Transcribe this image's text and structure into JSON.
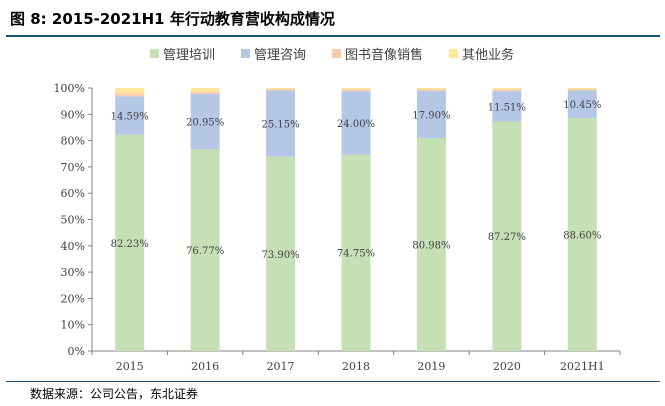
{
  "title": "图 8: 2015-2021H1 年行动教育营收构成情况",
  "source": "数据来源：公司公告，东北证券",
  "chart_data": {
    "type": "bar",
    "stacked": true,
    "categories": [
      "2015",
      "2016",
      "2017",
      "2018",
      "2019",
      "2020",
      "2021H1"
    ],
    "ylim": [
      0,
      100
    ],
    "yticks": [
      "0%",
      "10%",
      "20%",
      "30%",
      "40%",
      "50%",
      "60%",
      "70%",
      "80%",
      "90%",
      "100%"
    ],
    "legend_position": "top",
    "series": [
      {
        "name": "管理培训",
        "color": "#c5e0b4",
        "values": [
          82.23,
          76.77,
          73.9,
          74.75,
          80.98,
          87.27,
          88.6
        ],
        "labels": [
          "82.23%",
          "76.77%",
          "73.90%",
          "74.75%",
          "80.98%",
          "87.27%",
          "88.60%"
        ]
      },
      {
        "name": "管理咨询",
        "color": "#b4c7e7",
        "values": [
          14.59,
          20.95,
          25.15,
          24.0,
          17.9,
          11.51,
          10.45
        ],
        "labels": [
          "14.59%",
          "20.95%",
          "25.15%",
          "24.00%",
          "17.90%",
          "11.51%",
          "10.45%"
        ]
      },
      {
        "name": "图书音像销售",
        "color": "#f8cbad",
        "values": [
          1.2,
          0.8,
          0.5,
          0.8,
          0.7,
          0.7,
          0.4
        ]
      },
      {
        "name": "其他业务",
        "color": "#ffe699",
        "values": [
          1.98,
          1.48,
          0.45,
          0.45,
          0.42,
          0.52,
          0.55
        ]
      }
    ]
  }
}
